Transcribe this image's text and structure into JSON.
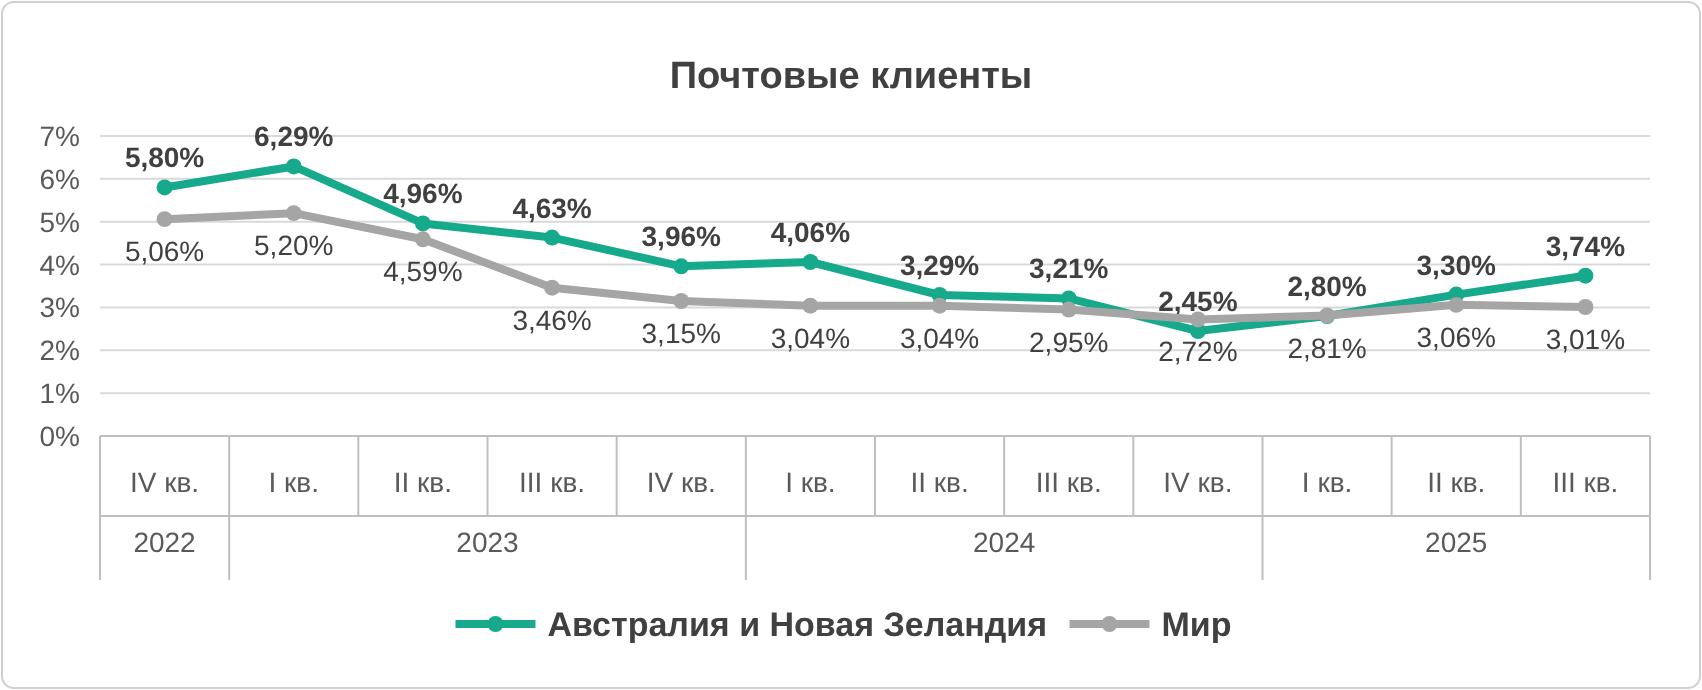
{
  "chart_data": {
    "type": "line",
    "title": "Почтовые клиенты",
    "categories": [
      "IV кв.",
      "I кв.",
      "II кв.",
      "III кв.",
      "IV кв.",
      "I кв.",
      "II кв.",
      "III кв.",
      "IV кв.",
      "I кв.",
      "II кв.",
      "III кв."
    ],
    "series": [
      {
        "name": "Австралия и Новая Зеландия",
        "color": "#16a98b",
        "values": [
          5.8,
          6.29,
          4.96,
          4.63,
          3.96,
          4.06,
          3.29,
          3.21,
          2.45,
          2.8,
          3.3,
          3.74
        ],
        "value_labels": [
          "5,80%",
          "6,29%",
          "4,96%",
          "4,63%",
          "3,96%",
          "4,06%",
          "3,29%",
          "3,21%",
          "2,45%",
          "2,80%",
          "3,30%",
          "3,74%"
        ]
      },
      {
        "name": "Мир",
        "color": "#a5a5a5",
        "values": [
          5.06,
          5.2,
          4.59,
          3.46,
          3.15,
          3.04,
          3.04,
          2.95,
          2.72,
          2.81,
          3.06,
          3.01
        ],
        "value_labels": [
          "5,06%",
          "5,20%",
          "4,59%",
          "3,46%",
          "3,15%",
          "3,04%",
          "3,04%",
          "2,95%",
          "2,72%",
          "2,81%",
          "3,06%",
          "3,01%"
        ]
      }
    ],
    "ylim": [
      0,
      7
    ],
    "yticks": [
      {
        "value": 0,
        "label": "0%"
      },
      {
        "value": 1,
        "label": "1%"
      },
      {
        "value": 2,
        "label": "2%"
      },
      {
        "value": 3,
        "label": "3%"
      },
      {
        "value": 4,
        "label": "4%"
      },
      {
        "value": 5,
        "label": "5%"
      },
      {
        "value": 6,
        "label": "6%"
      },
      {
        "value": 7,
        "label": "7%"
      }
    ],
    "annotations": [
      "2022",
      "2023",
      "2024",
      "2025"
    ],
    "grid": "y",
    "legend": "bottom",
    "marker": "circle",
    "line_style": "solid"
  }
}
